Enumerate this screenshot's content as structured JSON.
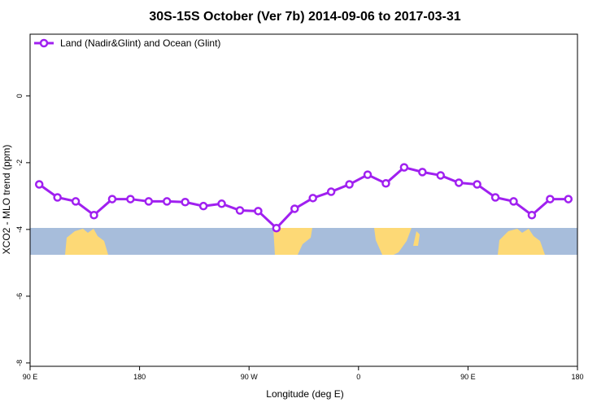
{
  "chart_data": {
    "type": "line",
    "title": "30S-15S October (Ver 7b)   2014-09-06 to 2017-03-31",
    "x_label": "Longitude (deg E)",
    "y_label": "XCO2 - MLO trend (ppm)",
    "xlim": [
      90,
      540
    ],
    "ylim": [
      -8.1,
      1.85
    ],
    "xticks": [
      {
        "value": 90,
        "label": "90 E"
      },
      180,
      {
        "value": 270,
        "label": "90 W"
      },
      {
        "value": 360,
        "label": "0"
      },
      {
        "value": 450,
        "label": "90 E"
      },
      {
        "value": 540,
        "label": "180"
      }
    ],
    "yticks": [
      0,
      -2,
      -4,
      -6,
      -8
    ],
    "legend_position": "upper left",
    "x": [
      97.5,
      112.5,
      127.5,
      142.5,
      157.5,
      172.5,
      187.5,
      202.5,
      217.5,
      232.5,
      247.5,
      262.5,
      277.5,
      292.5,
      307.5,
      322.5,
      337.5,
      352.5,
      367.5,
      382.5,
      397.5,
      412.5,
      427.5,
      442.5,
      457.5,
      472.5,
      487.5,
      502.5,
      517.5,
      532.5
    ],
    "series": [
      {
        "name": "Land (Nadir&Glint) and Ocean (Glint)",
        "color": "#a020f0",
        "values": [
          -2.65,
          -3.04,
          -3.16,
          -3.57,
          -3.09,
          -3.09,
          -3.16,
          -3.16,
          -3.18,
          -3.3,
          -3.23,
          -3.43,
          -3.45,
          -3.96,
          -3.38,
          -3.06,
          -2.87,
          -2.65,
          -2.36,
          -2.62,
          -2.14,
          -2.28,
          -2.38,
          -2.6,
          -2.65,
          -3.04,
          -3.16,
          -3.57,
          -3.09,
          -3.09
        ]
      }
    ]
  }
}
